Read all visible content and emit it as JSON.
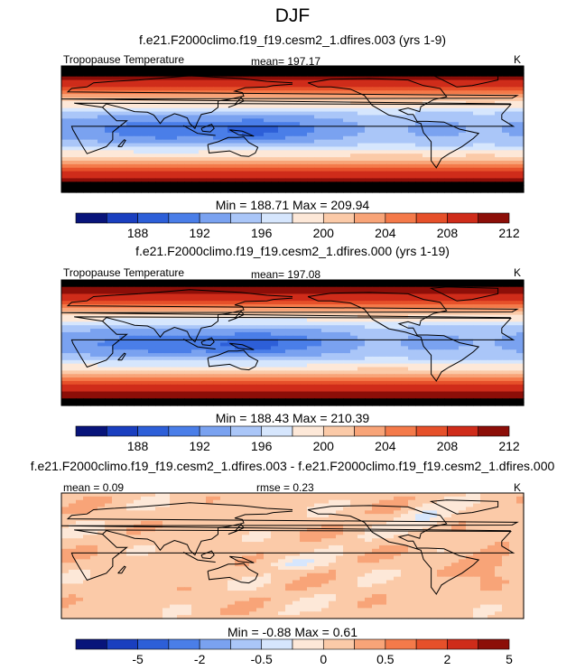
{
  "title": "DJF",
  "colors": {
    "t_bins": [
      "#08147a",
      "#1a3fbf",
      "#2d5fd8",
      "#4a7ee8",
      "#7aa2f0",
      "#aac6f8",
      "#d6e6fd",
      "#fde8d8",
      "#fbcaa8",
      "#f8a478",
      "#f47a4a",
      "#e6502a",
      "#cf2c1a",
      "#8c0e08"
    ],
    "d_bins": [
      "#08147a",
      "#1a3fbf",
      "#2d5fd8",
      "#4a7ee8",
      "#7aa2f0",
      "#aac6f8",
      "#d6e6fd",
      "#fde8d8",
      "#fbcaa8",
      "#f8a478",
      "#f47a4a",
      "#e6502a",
      "#cf2c1a",
      "#8c0e08"
    ]
  },
  "panels": [
    {
      "case": "f.e21.F2000climo.f19_f19.cesm2_1.dfires.003 (yrs 1-9)",
      "left_label": "Tropopause Temperature",
      "center_label": "mean= 197.17",
      "right_label": "K",
      "minmax": "Min = 188.71 Max = 209.94",
      "colorbar_ticks": [
        "188",
        "192",
        "196",
        "200",
        "204",
        "208",
        "212"
      ]
    },
    {
      "case": "f.e21.F2000climo.f19_f19.cesm2_1.dfires.000 (yrs 1-19)",
      "left_label": "Tropopause Temperature",
      "center_label": "mean= 197.08",
      "right_label": "K",
      "minmax": "Min = 188.43 Max = 210.39",
      "colorbar_ticks": [
        "188",
        "192",
        "196",
        "200",
        "204",
        "208",
        "212"
      ]
    },
    {
      "case": "f.e21.F2000climo.f19_f19.cesm2_1.dfires.003 - f.e21.F2000climo.f19_f19.cesm2_1.dfires.000",
      "left_label": "mean =   0.09",
      "center_label": "rmse =   0.23",
      "right_label": "K",
      "minmax": "Min =  -0.88 Max =   0.61",
      "colorbar_ticks": [
        "-5",
        "-2",
        "-0.5",
        "0",
        "0.5",
        "2",
        "5"
      ]
    }
  ],
  "chart_data": [
    {
      "type": "heatmap",
      "title": "Tropopause Temperature",
      "variable": "Tropopause Temperature",
      "units": "K",
      "season": "DJF",
      "case": "f.e21.F2000climo.f19_f19.cesm2_1.dfires.003 (yrs 1-9)",
      "mean": 197.17,
      "min": 188.71,
      "max": 209.94,
      "levels": [
        186,
        188,
        190,
        192,
        194,
        196,
        198,
        200,
        202,
        204,
        206,
        208,
        210,
        212,
        214
      ],
      "colorbar_labels": [
        "188",
        "192",
        "196",
        "200",
        "204",
        "208",
        "212"
      ],
      "lat_profile_approx": {
        "lat": [
          90,
          60,
          45,
          30,
          15,
          0,
          -15,
          -30,
          -45,
          -60,
          -90
        ],
        "value": [
          213,
          209,
          203,
          197,
          193,
          192,
          193,
          197,
          202,
          208,
          212
        ]
      }
    },
    {
      "type": "heatmap",
      "title": "Tropopause Temperature",
      "variable": "Tropopause Temperature",
      "units": "K",
      "season": "DJF",
      "case": "f.e21.F2000climo.f19_f19.cesm2_1.dfires.000 (yrs 1-19)",
      "mean": 197.08,
      "min": 188.43,
      "max": 210.39,
      "levels": [
        186,
        188,
        190,
        192,
        194,
        196,
        198,
        200,
        202,
        204,
        206,
        208,
        210,
        212,
        214
      ],
      "colorbar_labels": [
        "188",
        "192",
        "196",
        "200",
        "204",
        "208",
        "212"
      ],
      "lat_profile_approx": {
        "lat": [
          90,
          60,
          45,
          30,
          15,
          0,
          -15,
          -30,
          -45,
          -60,
          -90
        ],
        "value": [
          213,
          209,
          203,
          197,
          193,
          191,
          193,
          197,
          202,
          208,
          212
        ]
      }
    },
    {
      "type": "heatmap",
      "title": "f.e21.F2000climo.f19_f19.cesm2_1.dfires.003 - f.e21.F2000climo.f19_f19.cesm2_1.dfires.000",
      "units": "K",
      "mean": 0.09,
      "rmse": 0.23,
      "min": -0.88,
      "max": 0.61,
      "levels": [
        -9,
        -5,
        -3,
        -2,
        -1,
        -0.5,
        -0.25,
        0,
        0.25,
        0.5,
        1,
        2,
        3,
        5,
        9
      ],
      "colorbar_labels": [
        "-5",
        "-2",
        "-0.5",
        "0",
        "0.5",
        "2",
        "5"
      ]
    }
  ]
}
